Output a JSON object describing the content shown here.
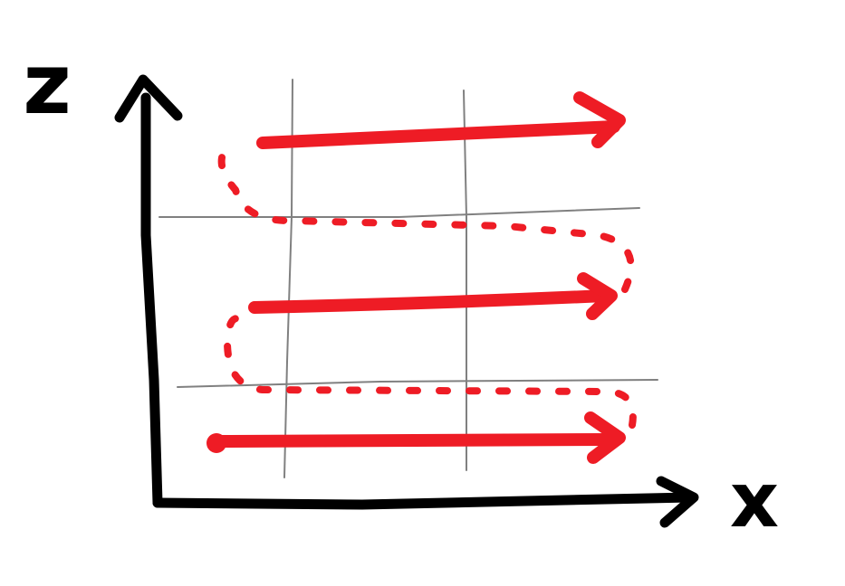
{
  "diagram": {
    "type": "raster-scan-path",
    "axes": {
      "vertical_label": "z",
      "horizontal_label": "x"
    },
    "colors": {
      "axis": "#000000",
      "grid": "#808080",
      "scan_path": "#ee1c25",
      "background": "#ffffff"
    },
    "icons": {
      "start_marker": "filled-dot-icon",
      "scan_direction": "arrow-right-icon",
      "return_path": "dotted-curve-icon"
    }
  }
}
